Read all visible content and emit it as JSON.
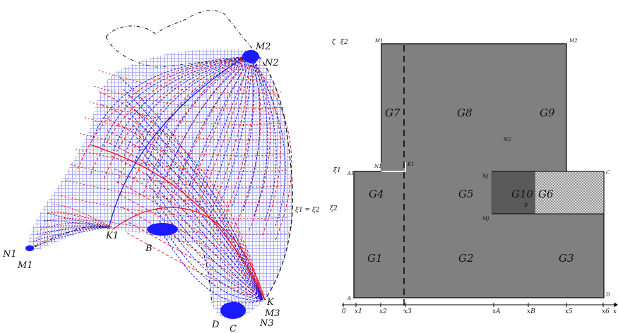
{
  "left_panel": {
    "point_labels": [
      {
        "key": "M2",
        "text": "M2"
      },
      {
        "key": "N2",
        "text": "N2"
      },
      {
        "key": "N1",
        "text": "N1"
      },
      {
        "key": "M1",
        "text": "M1"
      },
      {
        "key": "K1",
        "text": "K1"
      },
      {
        "key": "B",
        "text": "B"
      },
      {
        "key": "K",
        "text": "K"
      },
      {
        "key": "M3",
        "text": "M3"
      },
      {
        "key": "N3",
        "text": "N3"
      },
      {
        "key": "D",
        "text": "D"
      },
      {
        "key": "C",
        "text": "C"
      }
    ],
    "colors": {
      "red": "#e8141c",
      "blue": "#1414e6",
      "fill_blue": "#1a1aff",
      "boundary": "#111111"
    }
  },
  "right_panel": {
    "regions": [
      {
        "key": "G1",
        "text": "G1"
      },
      {
        "key": "G2",
        "text": "G2"
      },
      {
        "key": "G3",
        "text": "G3"
      },
      {
        "key": "G4",
        "text": "G4"
      },
      {
        "key": "G5",
        "text": "G5"
      },
      {
        "key": "G7",
        "text": "G7"
      },
      {
        "key": "G8",
        "text": "G8"
      },
      {
        "key": "G9",
        "text": "G9"
      },
      {
        "key": "G10",
        "text": "G10"
      },
      {
        "key": "G6",
        "text": "G6"
      }
    ],
    "point_labels": [
      {
        "key": "N2",
        "text": "N2"
      },
      {
        "key": "M1t",
        "text": "M1"
      },
      {
        "key": "M2t",
        "text": "M2"
      },
      {
        "key": "A1",
        "text": "A1"
      },
      {
        "key": "N1",
        "text": "N1"
      },
      {
        "key": "K1r",
        "text": "K1"
      },
      {
        "key": "Nj",
        "text": "Nj"
      },
      {
        "key": "C",
        "text": "C"
      },
      {
        "key": "Mj",
        "text": "Mj"
      },
      {
        "key": "B",
        "text": "B"
      },
      {
        "key": "D",
        "text": "D"
      },
      {
        "key": "A",
        "text": "A"
      }
    ],
    "axis_labels": {
      "left_top": "ζ",
      "left_top_sub": "ξ2",
      "left_mid": "ξ1",
      "right_mid": "ξ1 = ξ2",
      "right_top": "ξ2",
      "bottom": [
        "0",
        "x1",
        "x2",
        "x3",
        "xA",
        "xB",
        "x5",
        "x6",
        "x"
      ]
    },
    "colors": {
      "fill": "#808080",
      "stroke": "#000000",
      "overlap_fill": "#5a5a5a",
      "hatch": "#dddddd"
    }
  }
}
